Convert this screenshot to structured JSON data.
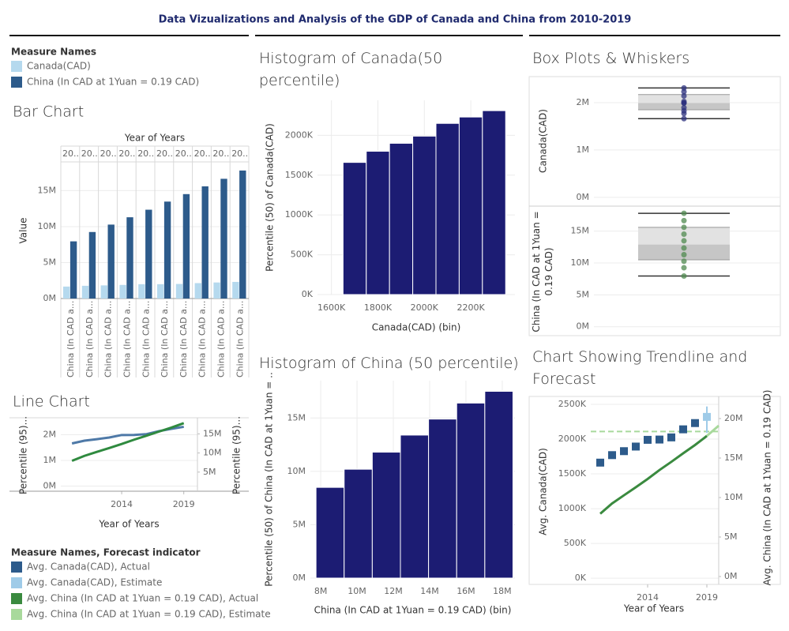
{
  "title": "Data Vizualizations and Analysis of the GDP of Canada and China from 2010-2019",
  "chart_data": [
    {
      "type": "bar",
      "title": "Bar Chart",
      "column_title": "Year of Years",
      "legend_title": "Measure Names",
      "categories": [
        "20..",
        "20..",
        "20..",
        "20..",
        "20..",
        "20..",
        "20..",
        "20..",
        "20..",
        "20.."
      ],
      "x_labels": [
        "China (In CAD a...",
        "China (In CAD a...",
        "China (In CAD a...",
        "China (In CAD a...",
        "China (In CAD a...",
        "China (In CAD a...",
        "China (In CAD a...",
        "China (In CAD a...",
        "China (In CAD a...",
        "China (In CAD a..."
      ],
      "ylabel": "Value",
      "series": [
        {
          "name": "Canada(CAD)",
          "color": "#b5d9ee",
          "values": [
            1662000,
            1770000,
            1827000,
            1893000,
            1990000,
            1994000,
            2025000,
            2141000,
            2231000,
            2310000
          ]
        },
        {
          "name": "China (In CAD at 1Yuan = 0.19 CAD)",
          "color": "#2d5b8b",
          "values": [
            7950000,
            9250000,
            10280000,
            11300000,
            12350000,
            13480000,
            14520000,
            15600000,
            16650000,
            17800000
          ]
        }
      ],
      "ylim": [
        0,
        19000000
      ],
      "yticks": [
        {
          "value": 0,
          "label": "0M"
        },
        {
          "value": 5000000,
          "label": "5M"
        },
        {
          "value": 10000000,
          "label": "10M"
        },
        {
          "value": 15000000,
          "label": "15M"
        }
      ]
    },
    {
      "type": "histogram",
      "title": "Histogram of Canada(50 percentile)",
      "xlabel": "Canada(CAD) (bin)",
      "ylabel": "Percentile (50) of Canada(CAD)",
      "color": "#1c1c73",
      "bins": [
        1650000,
        1750000,
        1850000,
        1950000,
        2050000,
        2150000,
        2250000,
        2350000
      ],
      "values": [
        1660000,
        1800000,
        1900000,
        1990000,
        2150000,
        2230000,
        2310000
      ],
      "xlim": [
        1540000,
        2390000
      ],
      "xticks": [
        {
          "value": 1600000,
          "label": "1600K"
        },
        {
          "value": 1800000,
          "label": "1800K"
        },
        {
          "value": 2000000,
          "label": "2000K"
        },
        {
          "value": 2200000,
          "label": "2200K"
        }
      ],
      "ylim": [
        0,
        2440000
      ],
      "yticks": [
        {
          "value": 0,
          "label": "0K"
        },
        {
          "value": 500000,
          "label": "500K"
        },
        {
          "value": 1000000,
          "label": "1000K"
        },
        {
          "value": 1500000,
          "label": "1500K"
        },
        {
          "value": 2000000,
          "label": "2000K"
        }
      ]
    },
    {
      "type": "histogram",
      "title": "Histogram of China (50 percentile)",
      "xlabel": "China (In CAD at 1Yuan = 0.19 CAD) (bin)",
      "ylabel": "Percentile (50) of China (In CAD at 1Yuan = ..",
      "color": "#1c1c73",
      "bins": [
        7740000,
        9290000,
        10840000,
        12390000,
        13940000,
        15490000,
        17040000,
        18590000
      ],
      "values": [
        8500000,
        10200000,
        11800000,
        13400000,
        14900000,
        16400000,
        17500000
      ],
      "xlim": [
        7430000,
        18700000
      ],
      "xticks": [
        {
          "value": 8000000,
          "label": "8M"
        },
        {
          "value": 10000000,
          "label": "10M"
        },
        {
          "value": 12000000,
          "label": "12M"
        },
        {
          "value": 14000000,
          "label": "14M"
        },
        {
          "value": 16000000,
          "label": "16M"
        },
        {
          "value": 18000000,
          "label": "18M"
        }
      ],
      "ylim": [
        0,
        18500000
      ],
      "yticks": [
        {
          "value": 0,
          "label": "0M"
        },
        {
          "value": 5000000,
          "label": "5M"
        },
        {
          "value": 10000000,
          "label": "10M"
        },
        {
          "value": 15000000,
          "label": "15M"
        }
      ]
    },
    {
      "type": "box",
      "title": "Box Plots & Whiskers",
      "panels": [
        {
          "ylabel": "Canada(CAD)",
          "color": "#2b2f7c",
          "ylim": [
            -170000,
            2550000
          ],
          "yticks": [
            {
              "value": 0,
              "label": "0M"
            },
            {
              "value": 1000000,
              "label": "1M"
            },
            {
              "value": 2000000,
              "label": "2M"
            }
          ],
          "values": [
            1662000,
            1770000,
            1827000,
            1893000,
            1990000,
            1994000,
            2025000,
            2141000,
            2231000,
            2310000
          ],
          "whisker_low": 1662000,
          "q1": 1850000,
          "median": 1992000,
          "q3": 2170000,
          "whisker_high": 2310000
        },
        {
          "ylabel": "China (In CAD at 1Yuan = 0.19 CAD)",
          "color": "#4f8a4f",
          "ylim": [
            -1400000,
            18800000
          ],
          "yticks": [
            {
              "value": 0,
              "label": "0M"
            },
            {
              "value": 5000000,
              "label": "5M"
            },
            {
              "value": 10000000,
              "label": "10M"
            },
            {
              "value": 15000000,
              "label": "15M"
            }
          ],
          "values": [
            7950000,
            9250000,
            10280000,
            11300000,
            12350000,
            13480000,
            14520000,
            15600000,
            16650000,
            17800000
          ],
          "whisker_low": 7950000,
          "q1": 10500000,
          "median": 12900000,
          "q3": 15600000,
          "whisker_high": 17800000
        }
      ]
    },
    {
      "type": "line",
      "title": "Line Chart",
      "xlabel": "Year of Years",
      "ylabel": "Percentile (95)...",
      "y2label": "Percentile (95)...",
      "x": [
        2010,
        2011,
        2012,
        2013,
        2014,
        2015,
        2016,
        2017,
        2018,
        2019
      ],
      "xlim": [
        2009.1,
        2020.1
      ],
      "xticks": [
        2014,
        2019
      ],
      "series": [
        {
          "name": "Canada(CAD)",
          "color": "#4e79a7",
          "values": [
            1662000,
            1770000,
            1827000,
            1893000,
            1990000,
            1994000,
            2025000,
            2141000,
            2231000,
            2310000
          ]
        },
        {
          "name": "China (In CAD at 1Yuan = 0.19 CAD)",
          "color": "#2f8a3f",
          "axis": "y2",
          "values": [
            7950000,
            9250000,
            10280000,
            11300000,
            12350000,
            13480000,
            14520000,
            15600000,
            16650000,
            17800000
          ]
        }
      ],
      "ylim": [
        -200000,
        2600000
      ],
      "yticks": [
        {
          "value": 0,
          "label": "0M"
        },
        {
          "value": 1000000,
          "label": "1M"
        },
        {
          "value": 2000000,
          "label": "2M"
        }
      ],
      "y2lim": [
        0,
        18800000
      ],
      "y2ticks": [
        {
          "value": 5000000,
          "label": "5M"
        },
        {
          "value": 10000000,
          "label": "10M"
        },
        {
          "value": 15000000,
          "label": "15M"
        }
      ]
    },
    {
      "type": "forecast",
      "title": "Chart Showing Trendline and Forecast",
      "legend_title": "Measure Names, Forecast indicator",
      "xlabel": "Year of Years",
      "ylabel": "Avg. Canada(CAD)",
      "y2label": "Avg. China (In CAD at 1Yuan = 0.19 CAD)",
      "xlim": [
        2009.2,
        2020
      ],
      "xticks": [
        2014,
        2019
      ],
      "series": [
        {
          "name": "Avg. Canada(CAD), Actual",
          "color": "#2d5b8b",
          "x": [
            2010,
            2011,
            2012,
            2013,
            2014,
            2015,
            2016,
            2017,
            2018
          ],
          "values": [
            1662000,
            1770000,
            1827000,
            1893000,
            1990000,
            1994000,
            2025000,
            2141000,
            2231000
          ]
        },
        {
          "name": "Avg. Canada(CAD), Estimate",
          "color": "#9fcbe8",
          "x": [
            2019
          ],
          "values": [
            2320000
          ],
          "ranges": [
            [
              2090000,
              2470000
            ]
          ]
        },
        {
          "name": "Avg. China (In CAD at 1Yuan = 0.19 CAD), Actual",
          "color": "#3a8a3f",
          "axis": "y2",
          "x": [
            2010,
            2011,
            2012,
            2013,
            2014,
            2015,
            2016,
            2017,
            2018,
            2019
          ],
          "values": [
            7950000,
            9250000,
            10280000,
            11300000,
            12350000,
            13480000,
            14520000,
            15600000,
            16650000,
            17800000
          ]
        },
        {
          "name": "Avg. China (In CAD at 1Yuan = 0.19 CAD), Estimate",
          "color": "#a8d99c",
          "axis": "y2",
          "x": [
            2019,
            2020
          ],
          "values": [
            17800000,
            19100000
          ]
        }
      ],
      "reference_line": 2110000,
      "ylim": [
        -90000,
        2580000
      ],
      "yticks": [
        {
          "value": 0,
          "label": "0K"
        },
        {
          "value": 500000,
          "label": "500K"
        },
        {
          "value": 1000000,
          "label": "1000K"
        },
        {
          "value": 1500000,
          "label": "1500K"
        },
        {
          "value": 2000000,
          "label": "2000K"
        },
        {
          "value": 2500000,
          "label": "2500K"
        }
      ],
      "y2lim": [
        -1000000,
        22500000
      ],
      "y2ticks": [
        {
          "value": 0,
          "label": "0M"
        },
        {
          "value": 5000000,
          "label": "5M"
        },
        {
          "value": 10000000,
          "label": "10M"
        },
        {
          "value": 15000000,
          "label": "15M"
        },
        {
          "value": 20000000,
          "label": "20M"
        }
      ]
    }
  ]
}
